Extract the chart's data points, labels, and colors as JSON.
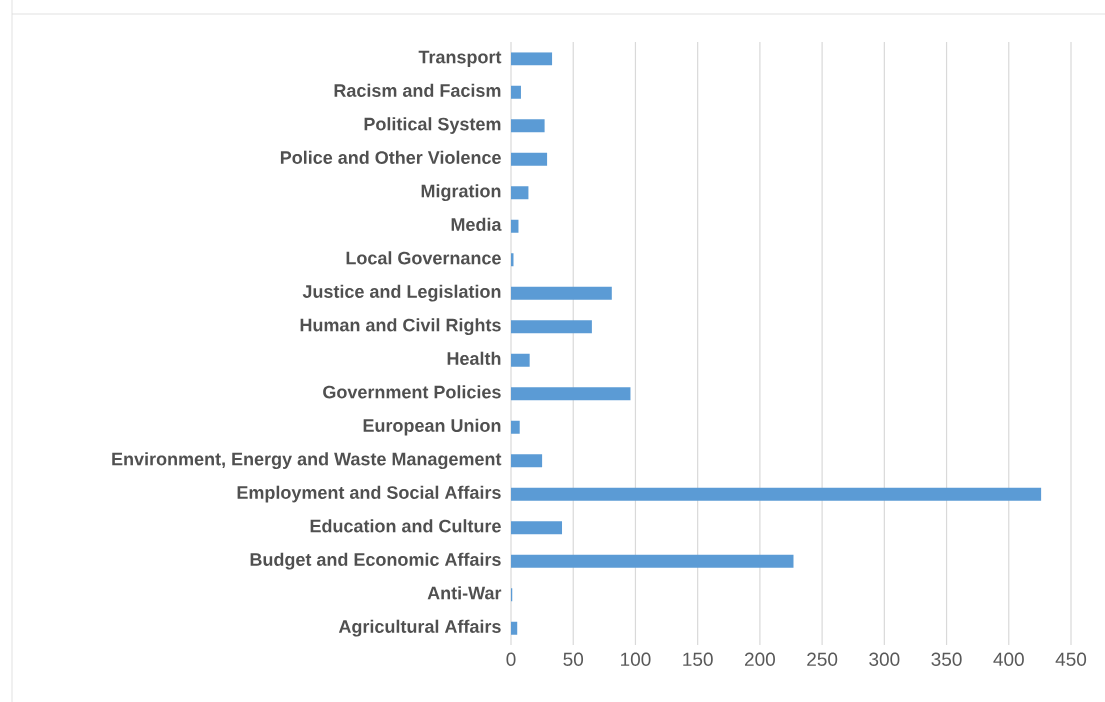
{
  "chart_data": {
    "type": "bar",
    "orientation": "horizontal",
    "categories": [
      "Transport",
      "Racism and Facism",
      "Political System",
      "Police and Other Violence",
      "Migration",
      "Media",
      "Local Governance",
      "Justice and Legislation",
      "Human and Civil Rights",
      "Health",
      "Government Policies",
      "European Union",
      "Environment, Energy and Waste Management",
      "Employment and Social Affairs",
      "Education and Culture",
      "Budget and Economic Affairs",
      "Anti-War",
      "Agricultural Affairs"
    ],
    "values": [
      33,
      8,
      27,
      29,
      14,
      6,
      2,
      81,
      65,
      15,
      96,
      7,
      25,
      426,
      41,
      227,
      1,
      5
    ],
    "color": "#5b9bd5",
    "xlim": [
      0,
      450
    ],
    "xticks": [
      0,
      50,
      100,
      150,
      200,
      250,
      300,
      350,
      400,
      450
    ],
    "grid": "x"
  }
}
